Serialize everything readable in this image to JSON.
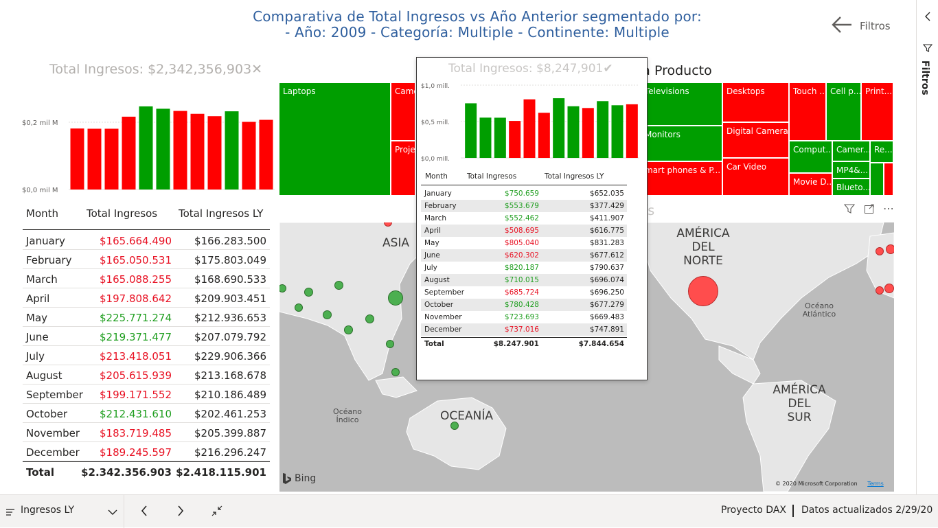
{
  "header": {
    "title_line1": "Comparativa de Total Ingresos vs Año Anterior segmentado por:",
    "title_line2": "- Año: 2009  - Categoría: Multiple  - Continente: Multiple",
    "filters_label": "Filtros"
  },
  "side_panel": {
    "label": "Filtros"
  },
  "main_card": {
    "value": "Total Ingresos: $2,342,356,903",
    "icon": "close-x-icon"
  },
  "left_chart": {
    "y_ticks": [
      "$0,2 mil M",
      "$0,0 mil M"
    ]
  },
  "main_table": {
    "headers": [
      "Month",
      "Total Ingresos",
      "Total Ingresos LY"
    ],
    "rows": [
      {
        "month": "January",
        "ti": "$165.664.490",
        "ly": "$166.283.500",
        "color": "red"
      },
      {
        "month": "February",
        "ti": "$165.050.531",
        "ly": "$175.803.049",
        "color": "red"
      },
      {
        "month": "March",
        "ti": "$165.088.255",
        "ly": "$168.690.533",
        "color": "red"
      },
      {
        "month": "April",
        "ti": "$197.808.642",
        "ly": "$209.903.451",
        "color": "red"
      },
      {
        "month": "May",
        "ti": "$225.771.274",
        "ly": "$212.936.653",
        "color": "green"
      },
      {
        "month": "June",
        "ti": "$219.371.477",
        "ly": "$207.079.792",
        "color": "green"
      },
      {
        "month": "July",
        "ti": "$213.418.051",
        "ly": "$229.906.366",
        "color": "red"
      },
      {
        "month": "August",
        "ti": "$205.615.939",
        "ly": "$213.168.678",
        "color": "red"
      },
      {
        "month": "September",
        "ti": "$199.171.552",
        "ly": "$210.186.489",
        "color": "red"
      },
      {
        "month": "October",
        "ti": "$212.431.610",
        "ly": "$202.461.253",
        "color": "green"
      },
      {
        "month": "November",
        "ti": "$183.719.485",
        "ly": "$205.399.887",
        "color": "red"
      },
      {
        "month": "December",
        "ti": "$189.245.597",
        "ly": "$216.296.247",
        "color": "red"
      }
    ],
    "total": {
      "label": "Total",
      "ti": "$2.342.356.903",
      "ly": "$2.418.115.901"
    }
  },
  "treemap": {
    "title_fragment": "ía Producto",
    "cells": [
      {
        "label": "Laptops",
        "color": "green"
      },
      {
        "label": "Camco",
        "color": "red"
      },
      {
        "label": "Projec",
        "color": "red"
      },
      {
        "label": "Televisions",
        "color": "green"
      },
      {
        "label": "Monitors",
        "color": "green"
      },
      {
        "label": "mart phones & P...",
        "color": "red"
      },
      {
        "label": "Desktops",
        "color": "red"
      },
      {
        "label": "Digital Cameras",
        "color": "red"
      },
      {
        "label": "Car Video",
        "color": "red"
      },
      {
        "label": "Touch ...",
        "color": "red"
      },
      {
        "label": "Cell p...",
        "color": "green"
      },
      {
        "label": "Print...",
        "color": "red"
      },
      {
        "label": "Comput...",
        "color": "green"
      },
      {
        "label": "Camer...",
        "color": "green"
      },
      {
        "label": "Re...",
        "color": "green"
      },
      {
        "label": "MP4&...",
        "color": "green"
      },
      {
        "label": "Movie D...",
        "color": "red"
      },
      {
        "label": "Blueto...",
        "color": "green"
      },
      {
        "label": "",
        "color": "green"
      },
      {
        "label": "",
        "color": "red"
      }
    ]
  },
  "map_visual": {
    "title_fragment": "ís",
    "labels": [
      "ASIA",
      "OCEANÍA"
    ],
    "label_america_norte": [
      "AMÉRICA",
      "DEL",
      "NORTE"
    ],
    "label_america_sur": [
      "AMÉRICA",
      "DEL",
      "SUR"
    ],
    "ocean_indico": [
      "Océano",
      "Índico"
    ],
    "ocean_atlantico": [
      "Océano",
      "Atlántico"
    ],
    "bing": "Bing",
    "copyright": "© 2020 Microsoft Corporation",
    "terms": "Terms"
  },
  "tooltip": {
    "card_value": "Total Ingresos: $8,247,901",
    "card_icon": "check-icon",
    "y_ticks": [
      "$1,0 mill.",
      "$0,5 mill.",
      "$0,0 mill."
    ],
    "headers": [
      "Month",
      "Total Ingresos",
      "Total Ingresos LY"
    ],
    "rows": [
      {
        "month": "January",
        "ti": "$750.659",
        "ly": "$652.035",
        "color": "green"
      },
      {
        "month": "February",
        "ti": "$553.679",
        "ly": "$377.429",
        "color": "green"
      },
      {
        "month": "March",
        "ti": "$552.462",
        "ly": "$411.907",
        "color": "green"
      },
      {
        "month": "April",
        "ti": "$508.695",
        "ly": "$616.775",
        "color": "red"
      },
      {
        "month": "May",
        "ti": "$805.040",
        "ly": "$831.283",
        "color": "red"
      },
      {
        "month": "June",
        "ti": "$620.302",
        "ly": "$677.612",
        "color": "red"
      },
      {
        "month": "July",
        "ti": "$820.187",
        "ly": "$790.637",
        "color": "green"
      },
      {
        "month": "August",
        "ti": "$710.015",
        "ly": "$696.074",
        "color": "green"
      },
      {
        "month": "September",
        "ti": "$685.724",
        "ly": "$696.250",
        "color": "red"
      },
      {
        "month": "October",
        "ti": "$780.428",
        "ly": "$677.279",
        "color": "green"
      },
      {
        "month": "November",
        "ti": "$723.693",
        "ly": "$669.483",
        "color": "green"
      },
      {
        "month": "December",
        "ti": "$737.016",
        "ly": "$747.891",
        "color": "red"
      }
    ],
    "total": {
      "label": "Total",
      "ti": "$8.247.901",
      "ly": "$7.844.654"
    }
  },
  "bottom_bar": {
    "page_name": "Ingresos LY",
    "report_name": "Proyecto DAX",
    "updated": "Datos actualizados 2/29/20"
  },
  "colors": {
    "green": "#009e00",
    "red": "#ff0000",
    "title_blue": "#2f5f9e"
  },
  "chart_data": [
    {
      "type": "bar",
      "categories": [
        "January",
        "February",
        "March",
        "April",
        "May",
        "June",
        "July",
        "August",
        "September",
        "October",
        "November",
        "December"
      ],
      "values": [
        165664490,
        165050531,
        165088255,
        197808642,
        225771274,
        219371477,
        213418051,
        205615939,
        199171552,
        212431610,
        183719485,
        189245597
      ],
      "colors": [
        "red",
        "red",
        "red",
        "red",
        "green",
        "green",
        "red",
        "red",
        "red",
        "green",
        "red",
        "red"
      ],
      "ylim": [
        0,
        235000000
      ],
      "y_ticks": [
        "$0,2 mil M",
        "$0,0 mil M"
      ],
      "grid": true
    },
    {
      "type": "bar",
      "categories": [
        "January",
        "February",
        "March",
        "April",
        "May",
        "June",
        "July",
        "August",
        "September",
        "October",
        "November",
        "December"
      ],
      "values": [
        750659,
        553679,
        552462,
        508695,
        805040,
        620302,
        820187,
        710015,
        685724,
        780428,
        723693,
        737016
      ],
      "colors": [
        "green",
        "green",
        "green",
        "red",
        "red",
        "red",
        "green",
        "green",
        "red",
        "green",
        "green",
        "red"
      ],
      "ylim": [
        0,
        1000000
      ],
      "y_ticks": [
        "$1,0 mill.",
        "$0,5 mill.",
        "$0,0 mill."
      ],
      "grid": true
    }
  ]
}
